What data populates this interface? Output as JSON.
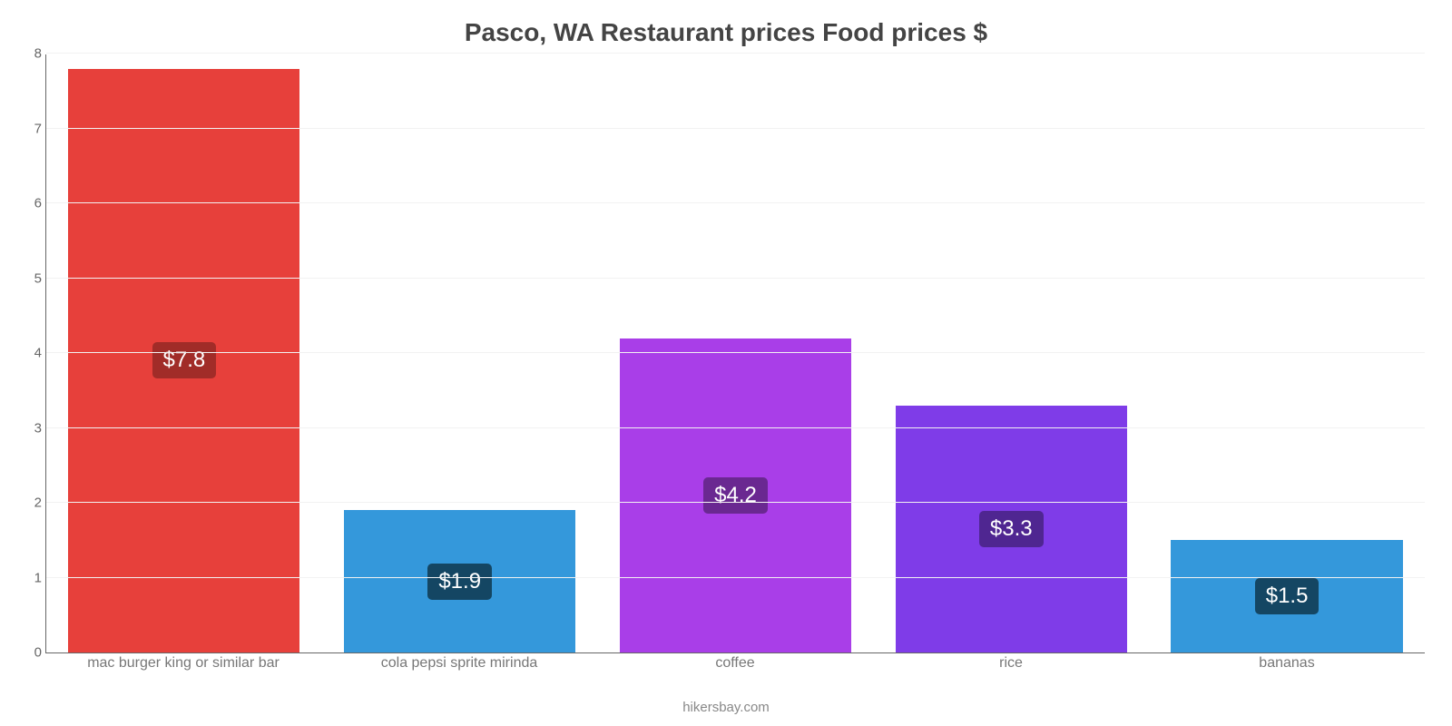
{
  "chart": {
    "type": "bar",
    "title": "Pasco, WA Restaurant prices Food prices $",
    "title_fontsize": 28,
    "title_color": "#444444",
    "credit": "hikersbay.com",
    "credit_color": "#888888",
    "background_color": "#ffffff",
    "grid_color": "#f2f2f2",
    "axis_color": "#666666",
    "tick_label_color": "#666666",
    "xlabel_color": "#777777",
    "ylim": [
      0,
      8
    ],
    "ytick_step": 1,
    "yticks": [
      0,
      1,
      2,
      3,
      4,
      5,
      6,
      7,
      8
    ],
    "bar_width_ratio": 0.84,
    "label_fontsize": 16,
    "value_badge_fontsize": 24,
    "value_badge_text_color": "#ffffff",
    "categories": [
      "mac burger king or similar bar",
      "cola pepsi sprite mirinda",
      "coffee",
      "rice",
      "bananas"
    ],
    "values": [
      7.8,
      1.9,
      4.2,
      3.3,
      1.5
    ],
    "value_labels": [
      "$7.8",
      "$1.9",
      "$4.2",
      "$3.3",
      "$1.5"
    ],
    "bar_colors": [
      "#e7403b",
      "#3498db",
      "#a93ee8",
      "#7f3ce8",
      "#3498db"
    ],
    "badge_colors": [
      "#a12c28",
      "#144663",
      "#6a2891",
      "#4f2691",
      "#144663"
    ],
    "badge_position": "inside-middle"
  }
}
